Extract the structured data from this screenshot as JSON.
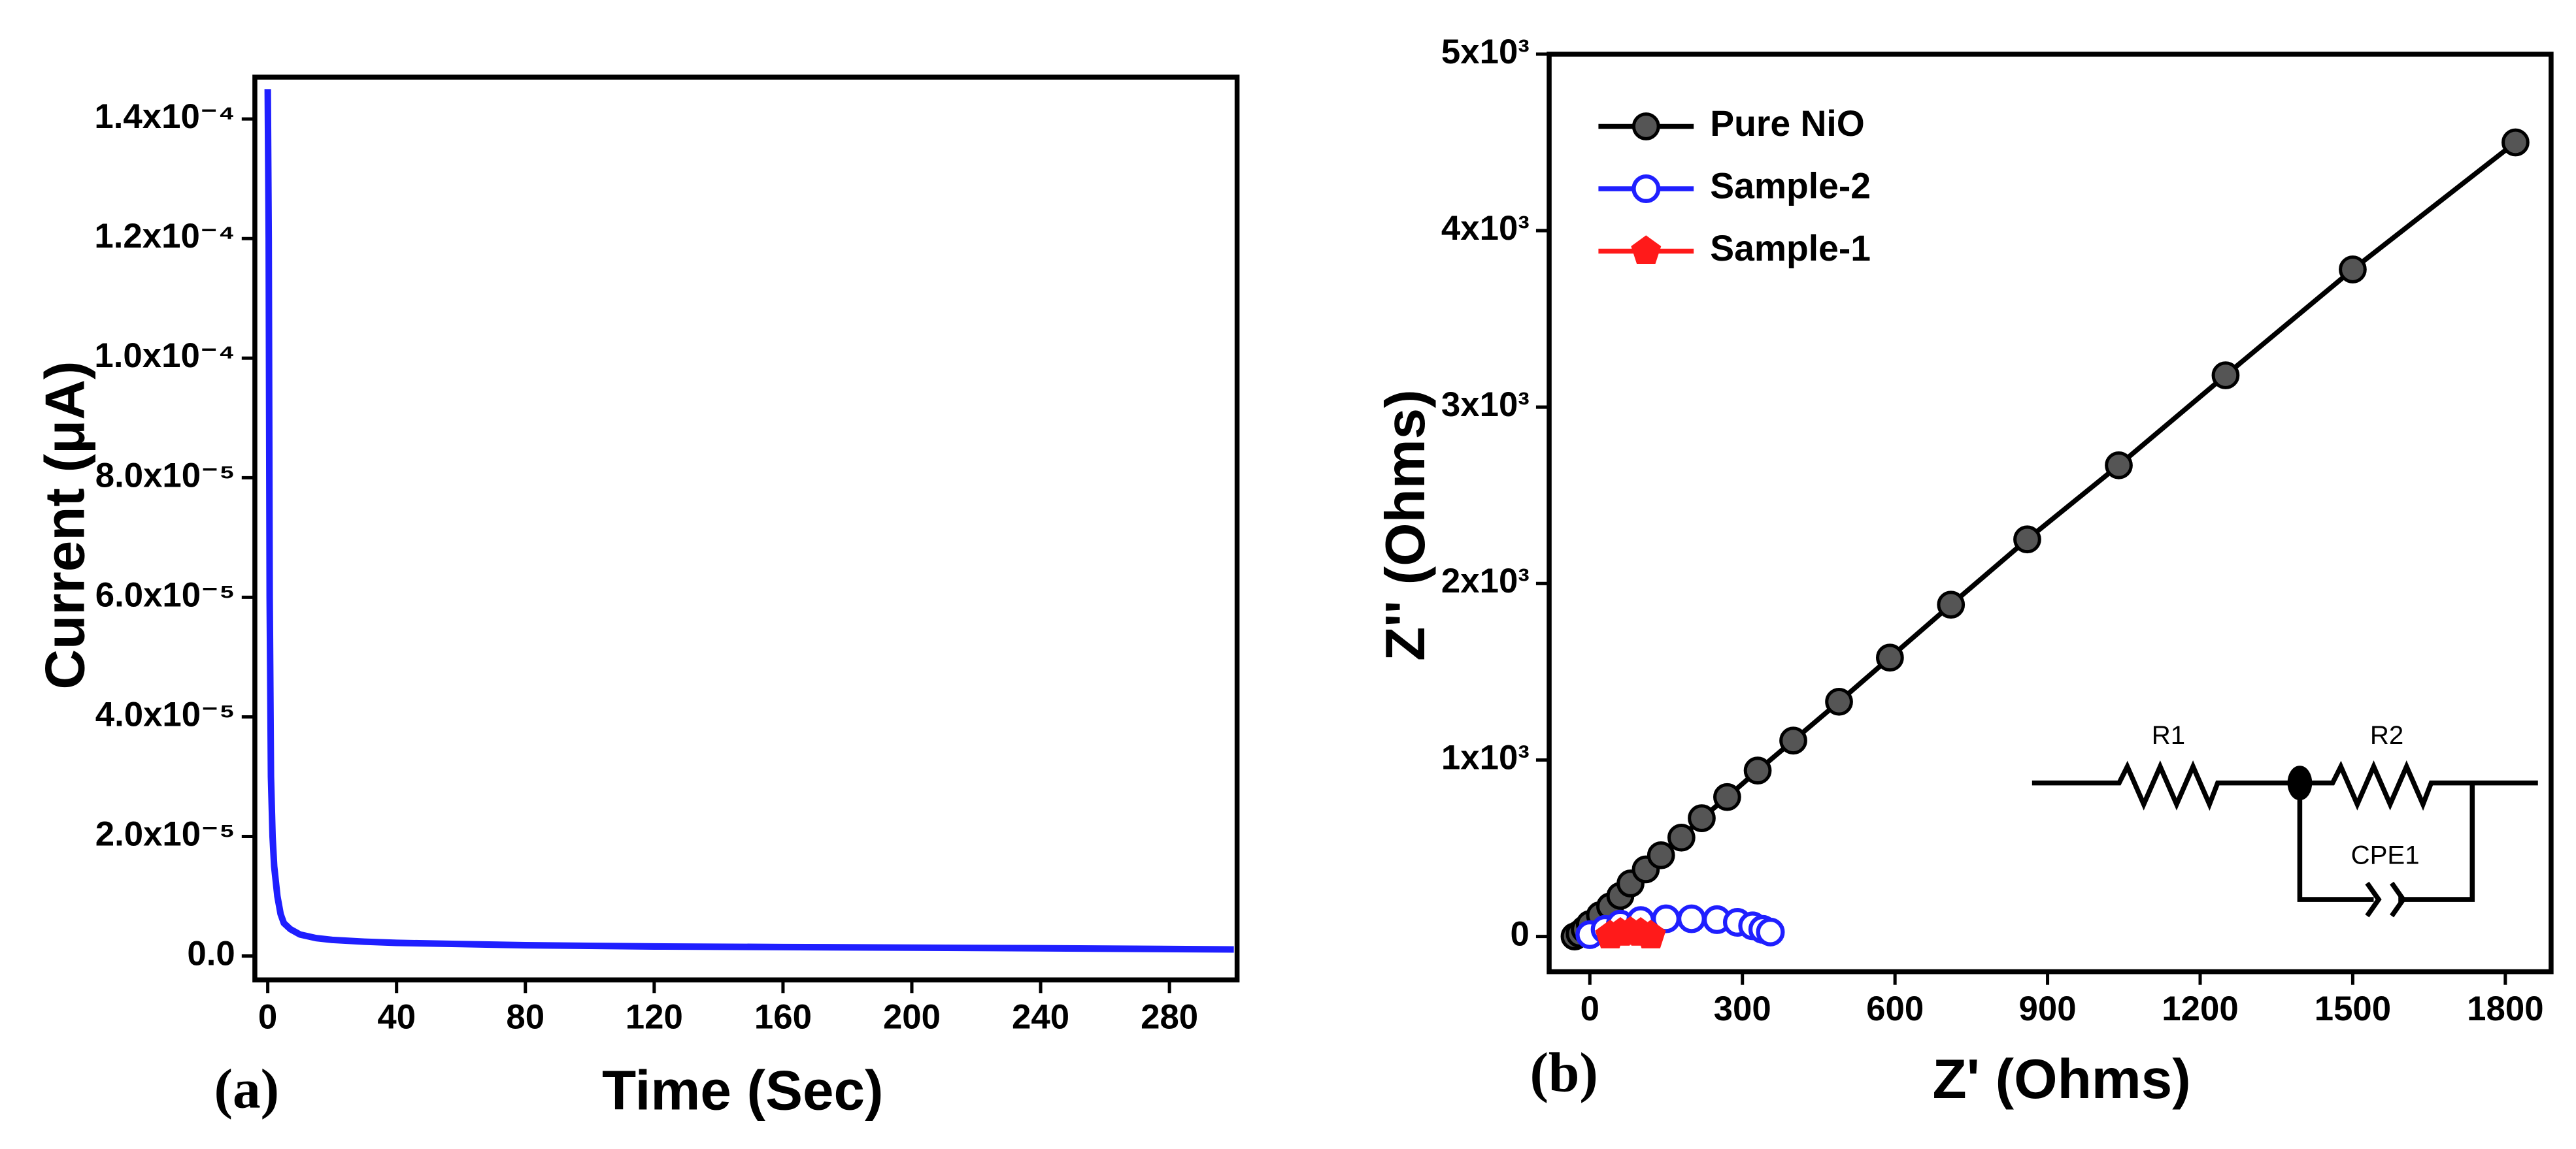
{
  "chart_data": [
    {
      "type": "line",
      "xlabel": "Time (Sec)",
      "ylabel": "Current (μA)",
      "annotation": "(a)",
      "x": [
        0,
        0.3,
        0.6,
        1,
        1.5,
        2,
        3,
        4,
        5,
        7,
        10,
        15,
        20,
        30,
        40,
        60,
        80,
        120,
        160,
        200,
        240,
        300
      ],
      "series": [
        {
          "name": null,
          "color": "#1f1fff",
          "values": [
            0.000145,
            0.00012,
            6e-05,
            3e-05,
            2e-05,
            1.5e-05,
            1e-05,
            7e-06,
            5.5e-06,
            4.5e-06,
            3.6e-06,
            3e-06,
            2.7e-06,
            2.4e-06,
            2.2e-06,
            2e-06,
            1.8e-06,
            1.6e-06,
            1.5e-06,
            1.4e-06,
            1.3e-06,
            1.1e-06
          ]
        }
      ],
      "xlim": [
        -4,
        301
      ],
      "ylim": [
        -4e-06,
        0.000147
      ],
      "xticks": [
        0,
        40,
        80,
        120,
        160,
        200,
        240,
        280
      ],
      "yticks": [
        {
          "value": 0,
          "label": "0.0"
        },
        {
          "value": 2e-05,
          "label": "2.0x10⁻⁵"
        },
        {
          "value": 4e-05,
          "label": "4.0x10⁻⁵"
        },
        {
          "value": 6e-05,
          "label": "6.0x10⁻⁵"
        },
        {
          "value": 8e-05,
          "label": "8.0x10⁻⁵"
        },
        {
          "value": 0.0001,
          "label": "1.0x10⁻⁴"
        },
        {
          "value": 0.00012,
          "label": "1.2x10⁻⁴"
        },
        {
          "value": 0.00014,
          "label": "1.4x10⁻⁴"
        }
      ]
    },
    {
      "type": "scatter",
      "xlabel": "Z' (Ohms)",
      "ylabel": "Z'' (Ohms)",
      "annotation": "(b)",
      "legend": "upper left",
      "circuit_labels": [
        "R1",
        "R2",
        "CPE1"
      ],
      "series": [
        {
          "name": "Pure NiO",
          "color": "#000000",
          "marker": "filled-circle",
          "x": [
            -30,
            -20,
            -10,
            0,
            20,
            40,
            60,
            80,
            110,
            140,
            180,
            220,
            270,
            330,
            400,
            490,
            590,
            710,
            860,
            1040,
            1250,
            1500,
            1820
          ],
          "values": [
            0,
            15,
            40,
            70,
            120,
            170,
            230,
            300,
            380,
            460,
            560,
            670,
            790,
            940,
            1110,
            1330,
            1580,
            1880,
            2250,
            2670,
            3180,
            3780,
            4500
          ]
        },
        {
          "name": "Sample-2",
          "color": "#1f1fff",
          "marker": "open-circle",
          "x": [
            0,
            30,
            60,
            100,
            150,
            200,
            250,
            290,
            320,
            340,
            355
          ],
          "values": [
            10,
            40,
            70,
            90,
            100,
            100,
            95,
            80,
            60,
            40,
            25
          ]
        },
        {
          "name": "Sample-1",
          "color": "#ff1a1a",
          "marker": "pentagon",
          "x": [
            40,
            60,
            80,
            100,
            120
          ],
          "values": [
            5,
            20,
            25,
            20,
            5
          ]
        }
      ],
      "xlim": [
        -80,
        1890
      ],
      "ylim": [
        -200,
        5000
      ],
      "xticks": [
        0,
        300,
        600,
        900,
        1200,
        1500,
        1800
      ],
      "yticks": [
        0,
        {
          "value": 1000,
          "label": "1x10³"
        },
        {
          "value": 2000,
          "label": "2x10³"
        },
        {
          "value": 3000,
          "label": "3x10³"
        },
        {
          "value": 4000,
          "label": "4x10³"
        },
        {
          "value": 5000,
          "label": "5x10³"
        }
      ]
    }
  ]
}
